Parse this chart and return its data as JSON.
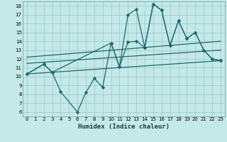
{
  "title": "",
  "xlabel": "Humidex (Indice chaleur)",
  "background_color": "#c5e8e8",
  "grid_color": "#9ecece",
  "line_color": "#1a6b6b",
  "xlim": [
    -0.5,
    23.5
  ],
  "ylim": [
    5.5,
    18.5
  ],
  "xticks": [
    0,
    1,
    2,
    3,
    4,
    5,
    6,
    7,
    8,
    9,
    10,
    11,
    12,
    13,
    14,
    15,
    16,
    17,
    18,
    19,
    20,
    21,
    22,
    23
  ],
  "yticks": [
    6,
    7,
    8,
    9,
    10,
    11,
    12,
    13,
    14,
    15,
    16,
    17,
    18
  ],
  "series_upper": {
    "x": [
      0,
      2,
      3,
      10,
      11,
      12,
      13,
      14,
      15,
      16,
      17,
      18,
      19,
      20,
      21,
      22,
      23
    ],
    "y": [
      10.3,
      11.4,
      10.5,
      13.8,
      11.1,
      17.0,
      17.6,
      13.3,
      18.2,
      17.5,
      13.5,
      16.3,
      14.3,
      15.0,
      13.0,
      12.0,
      11.8
    ]
  },
  "series_lower": {
    "x": [
      0,
      2,
      3,
      4,
      6,
      7,
      8,
      9,
      10,
      11,
      12,
      13,
      14,
      15,
      16,
      17,
      18,
      19,
      20,
      21,
      22,
      23
    ],
    "y": [
      10.3,
      11.4,
      10.5,
      8.3,
      6.0,
      8.2,
      9.8,
      8.8,
      13.8,
      11.1,
      13.9,
      14.0,
      13.3,
      18.2,
      17.5,
      13.5,
      16.3,
      14.3,
      15.0,
      13.0,
      12.0,
      11.8
    ]
  },
  "line1": {
    "x": [
      0,
      23
    ],
    "y": [
      10.3,
      11.8
    ]
  },
  "line2": {
    "x": [
      0,
      23
    ],
    "y": [
      11.5,
      13.0
    ]
  },
  "line3": {
    "x": [
      0,
      23
    ],
    "y": [
      12.2,
      14.0
    ]
  }
}
